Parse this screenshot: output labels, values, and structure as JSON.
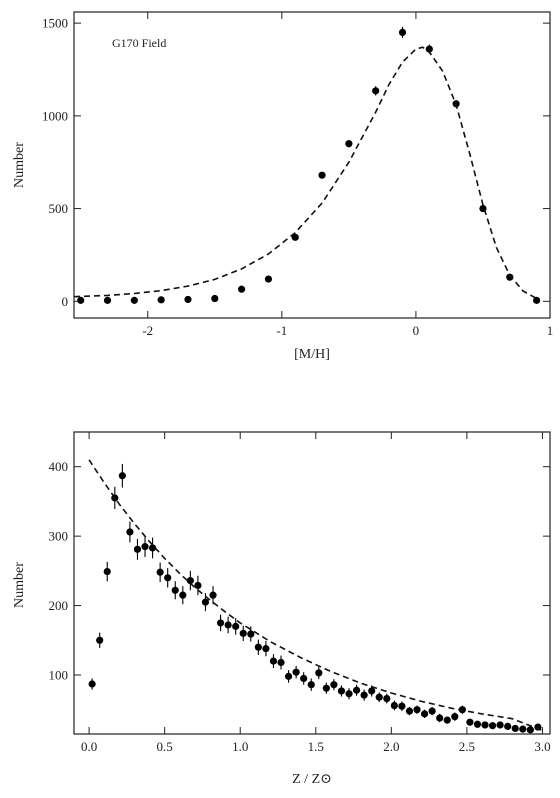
{
  "chart_data": [
    {
      "type": "scatter",
      "annotation": "G170 Field",
      "xlabel": "[M/H]",
      "ylabel": "Number",
      "xlim": [
        -2.55,
        1.0
      ],
      "ylim": [
        -90,
        1560
      ],
      "xticks": [
        -2,
        -1,
        0,
        1
      ],
      "yticks": [
        0,
        500,
        1000,
        1500
      ],
      "grid": false,
      "series": [
        {
          "style": "points",
          "x": [
            -2.5,
            -2.3,
            -2.1,
            -1.9,
            -1.7,
            -1.5,
            -1.3,
            -1.1,
            -0.9,
            -0.7,
            -0.5,
            -0.3,
            -0.1,
            0.1,
            0.3,
            0.5,
            0.7,
            0.9
          ],
          "y": [
            5,
            5,
            5,
            8,
            10,
            15,
            65,
            120,
            345,
            680,
            850,
            1135,
            1450,
            1360,
            1065,
            500,
            130,
            5
          ],
          "yerr": [
            0,
            0,
            0,
            0,
            0,
            0,
            0,
            0,
            0,
            15,
            20,
            25,
            30,
            25,
            20,
            15,
            0,
            0
          ]
        },
        {
          "style": "dashed-fit",
          "x": [
            -2.55,
            -2.3,
            -2.1,
            -1.9,
            -1.7,
            -1.5,
            -1.3,
            -1.1,
            -0.9,
            -0.7,
            -0.5,
            -0.3,
            -0.2,
            -0.1,
            0.0,
            0.05,
            0.1,
            0.2,
            0.3,
            0.4,
            0.5,
            0.6,
            0.7,
            0.8,
            0.9
          ],
          "y": [
            25,
            32,
            42,
            58,
            82,
            118,
            175,
            255,
            370,
            530,
            750,
            1020,
            1170,
            1290,
            1360,
            1370,
            1345,
            1240,
            1060,
            800,
            520,
            290,
            140,
            55,
            15
          ]
        }
      ]
    },
    {
      "type": "scatter",
      "xlabel": "Z / Z⊙",
      "ylabel": "Number",
      "xlim": [
        -0.1,
        3.05
      ],
      "ylim": [
        15,
        450
      ],
      "xticks": [
        0.0,
        0.5,
        1.0,
        1.5,
        2.0,
        2.5,
        3.0
      ],
      "xtick_labels": [
        "0.0",
        "0.5",
        "1.0",
        "1.5",
        "2.0",
        "2.5",
        "3.0"
      ],
      "yticks": [
        100,
        200,
        300,
        400
      ],
      "grid": false,
      "series": [
        {
          "style": "points",
          "x": [
            0.02,
            0.07,
            0.12,
            0.17,
            0.22,
            0.27,
            0.32,
            0.37,
            0.42,
            0.47,
            0.52,
            0.57,
            0.62,
            0.67,
            0.72,
            0.77,
            0.82,
            0.87,
            0.92,
            0.97,
            1.02,
            1.07,
            1.12,
            1.17,
            1.22,
            1.27,
            1.32,
            1.37,
            1.42,
            1.47,
            1.52,
            1.57,
            1.62,
            1.67,
            1.72,
            1.77,
            1.82,
            1.87,
            1.92,
            1.97,
            2.02,
            2.07,
            2.12,
            2.17,
            2.22,
            2.27,
            2.32,
            2.37,
            2.42,
            2.47,
            2.52,
            2.57,
            2.62,
            2.67,
            2.72,
            2.77,
            2.82,
            2.87,
            2.92,
            2.97
          ],
          "y": [
            87,
            150,
            249,
            355,
            387,
            306,
            281,
            285,
            283,
            248,
            240,
            222,
            215,
            236,
            229,
            205,
            215,
            175,
            172,
            170,
            160,
            159,
            140,
            138,
            120,
            118,
            98,
            104,
            95,
            86,
            103,
            81,
            86,
            77,
            73,
            78,
            71,
            77,
            68,
            66,
            56,
            55,
            48,
            50,
            44,
            48,
            38,
            35,
            40,
            50,
            32,
            29,
            28,
            27,
            28,
            26,
            23,
            22,
            21,
            25
          ],
          "yerr": [
            8,
            11,
            14,
            16,
            17,
            15,
            15,
            15,
            15,
            14,
            14,
            13,
            13,
            14,
            14,
            13,
            13,
            12,
            12,
            12,
            11,
            11,
            11,
            11,
            10,
            10,
            9,
            9,
            9,
            9,
            9,
            8,
            8,
            8,
            8,
            8,
            8,
            8,
            7,
            7,
            7,
            7,
            6,
            6,
            6,
            6,
            6,
            5,
            6,
            6,
            5,
            5,
            5,
            5,
            5,
            5,
            4,
            4,
            4,
            5
          ]
        },
        {
          "style": "dashed-fit",
          "x": [
            0.0,
            0.1,
            0.2,
            0.3,
            0.4,
            0.5,
            0.6,
            0.7,
            0.8,
            0.9,
            1.0,
            1.2,
            1.4,
            1.6,
            1.8,
            2.0,
            2.2,
            2.4,
            2.6,
            2.8,
            3.0
          ],
          "y": [
            410,
            377,
            346,
            318,
            292,
            268,
            246,
            226,
            208,
            191,
            175,
            148,
            125,
            105,
            88,
            74,
            62,
            52,
            44,
            37,
            20
          ]
        }
      ]
    }
  ]
}
